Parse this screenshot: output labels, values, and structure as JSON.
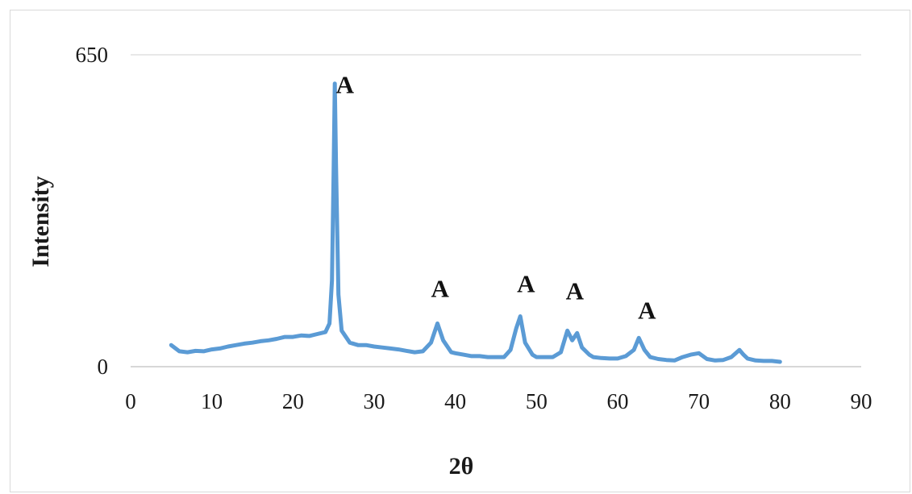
{
  "chart_data": {
    "type": "line",
    "title": "",
    "xlabel": "2θ",
    "ylabel": "Intensity",
    "xlim": [
      0,
      90
    ],
    "ylim": [
      0,
      650
    ],
    "x_ticks": [
      0,
      10,
      20,
      30,
      40,
      50,
      60,
      70,
      80,
      90
    ],
    "y_ticks": [
      0,
      650
    ],
    "grid": "horizontal-major",
    "legend": "none",
    "series": [
      {
        "color": "#5b9bd5",
        "points": [
          [
            5,
            45
          ],
          [
            6,
            32
          ],
          [
            7,
            30
          ],
          [
            8,
            33
          ],
          [
            9,
            32
          ],
          [
            10,
            36
          ],
          [
            11,
            38
          ],
          [
            12,
            42
          ],
          [
            13,
            45
          ],
          [
            14,
            48
          ],
          [
            15,
            50
          ],
          [
            16,
            53
          ],
          [
            17,
            55
          ],
          [
            18,
            58
          ],
          [
            19,
            62
          ],
          [
            20,
            62
          ],
          [
            21,
            65
          ],
          [
            22,
            64
          ],
          [
            23,
            68
          ],
          [
            24,
            72
          ],
          [
            24.5,
            90
          ],
          [
            24.8,
            180
          ],
          [
            25.0,
            400
          ],
          [
            25.15,
            590
          ],
          [
            25.3,
            420
          ],
          [
            25.6,
            150
          ],
          [
            26,
            75
          ],
          [
            27,
            50
          ],
          [
            28,
            45
          ],
          [
            29,
            45
          ],
          [
            30,
            42
          ],
          [
            31,
            40
          ],
          [
            32,
            38
          ],
          [
            33,
            36
          ],
          [
            34,
            33
          ],
          [
            35,
            30
          ],
          [
            36,
            32
          ],
          [
            37,
            50
          ],
          [
            37.8,
            90
          ],
          [
            38.5,
            55
          ],
          [
            39.5,
            30
          ],
          [
            40,
            28
          ],
          [
            41,
            25
          ],
          [
            42,
            22
          ],
          [
            43,
            22
          ],
          [
            44,
            20
          ],
          [
            45,
            20
          ],
          [
            46,
            20
          ],
          [
            46.8,
            35
          ],
          [
            47.5,
            80
          ],
          [
            48.0,
            105
          ],
          [
            48.6,
            50
          ],
          [
            49.5,
            25
          ],
          [
            50,
            20
          ],
          [
            51,
            20
          ],
          [
            52,
            20
          ],
          [
            53,
            30
          ],
          [
            53.8,
            75
          ],
          [
            54.4,
            55
          ],
          [
            55,
            70
          ],
          [
            55.6,
            40
          ],
          [
            56.5,
            25
          ],
          [
            57,
            20
          ],
          [
            58,
            18
          ],
          [
            59,
            17
          ],
          [
            60,
            17
          ],
          [
            61,
            22
          ],
          [
            62,
            35
          ],
          [
            62.6,
            60
          ],
          [
            63.3,
            35
          ],
          [
            64,
            20
          ],
          [
            65,
            16
          ],
          [
            66,
            14
          ],
          [
            67,
            13
          ],
          [
            68,
            20
          ],
          [
            69,
            25
          ],
          [
            70,
            28
          ],
          [
            70.5,
            22
          ],
          [
            71,
            16
          ],
          [
            72,
            13
          ],
          [
            73,
            14
          ],
          [
            74,
            20
          ],
          [
            75,
            35
          ],
          [
            75.5,
            25
          ],
          [
            76,
            17
          ],
          [
            77,
            13
          ],
          [
            78,
            12
          ],
          [
            79,
            12
          ],
          [
            80,
            10
          ]
        ]
      }
    ],
    "annotations": [
      {
        "text": "A",
        "x": 25.3,
        "y": 570
      },
      {
        "text": "A",
        "x": 37.0,
        "y": 145
      },
      {
        "text": "A",
        "x": 47.6,
        "y": 155
      },
      {
        "text": "A",
        "x": 53.6,
        "y": 140
      },
      {
        "text": "A",
        "x": 62.5,
        "y": 100
      }
    ]
  }
}
